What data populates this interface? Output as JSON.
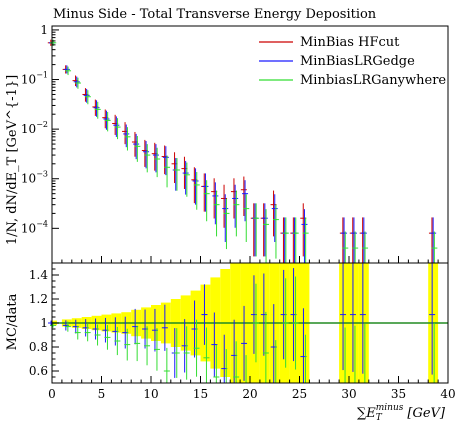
{
  "chart_data": {
    "type": "scatter",
    "title": "Minus Side - Total Transverse Energy Deposition",
    "xlim": [
      0,
      40
    ],
    "x_ticks": [
      "0",
      "5",
      "10",
      "15",
      "20",
      "25",
      "30",
      "35",
      "40"
    ],
    "xlabel_parts": [
      "∑",
      "E",
      "T",
      "minus",
      "[GeV]"
    ],
    "legend_position": "top-right",
    "colors": {
      "hfcut": "#cc0000",
      "lredge": "#1a1aff",
      "lranywhere": "#33dd33",
      "band": "#ffff00",
      "ref_line": "#228b22"
    },
    "top_panel": {
      "yscale": "log",
      "ylim": [
        2e-05,
        1.2
      ],
      "y_ticks": [
        {
          "value": 1,
          "base": "1",
          "exp": ""
        },
        {
          "value": 0.1,
          "base": "10",
          "exp": "−1"
        },
        {
          "value": 0.01,
          "base": "10",
          "exp": "−2"
        },
        {
          "value": 0.001,
          "base": "10",
          "exp": "−3"
        },
        {
          "value": 0.0001,
          "base": "10",
          "exp": "−4"
        }
      ],
      "ylabel": "1/N, dN/dE_T [GeV^{-1}]"
    },
    "series": [
      {
        "name": "MinBias HFcut",
        "color": "#cc0000",
        "x": [
          0,
          1.5,
          2.5,
          3.5,
          4.5,
          5.5,
          6.5,
          7.5,
          8.5,
          9.5,
          10.5,
          11.5,
          12.5,
          13.5,
          14.5,
          15.5,
          16.5,
          17.5,
          18.5,
          19.5,
          20.5,
          21.5,
          22.5,
          23.5,
          24.5,
          25.5,
          29.5,
          30.5,
          31.5,
          38.5
        ],
        "y": [
          0.55,
          0.16,
          0.095,
          0.05,
          0.028,
          0.017,
          0.013,
          0.009,
          0.0055,
          0.0037,
          0.0032,
          0.0028,
          0.002,
          0.0016,
          0.00095,
          0.0007,
          0.00055,
          0.0004,
          0.00055,
          0.0006,
          0.00016,
          0.00016,
          0.0003,
          8e-05,
          8e-05,
          0.00016,
          8e-05,
          8e-05,
          8e-05,
          8e-05
        ]
      },
      {
        "name": "MinBiasLRGedge",
        "color": "#1a1aff",
        "x": [
          0,
          1.5,
          2.5,
          3.5,
          4.5,
          5.5,
          6.5,
          7.5,
          8.5,
          9.5,
          10.5,
          11.5,
          12.5,
          13.5,
          14.5,
          15.5,
          16.5,
          17.5,
          18.5,
          19.5,
          20.5,
          21.5,
          22.5,
          23.5,
          24.5,
          25.5,
          29.5,
          30.5,
          31.5,
          38.5
        ],
        "y": [
          0.55,
          0.16,
          0.09,
          0.048,
          0.027,
          0.016,
          0.012,
          0.008,
          0.005,
          0.0035,
          0.003,
          0.0027,
          0.0015,
          0.0013,
          0.0009,
          0.0007,
          0.00045,
          0.00025,
          0.0004,
          0.0005,
          0.00016,
          0.00016,
          0.00025,
          8e-05,
          8e-05,
          0.00012,
          8e-05,
          8e-05,
          8e-05,
          8e-05
        ]
      },
      {
        "name": "MinbiasLRGanywhere",
        "color": "#33dd33",
        "x": [
          0,
          1.5,
          2.5,
          3.5,
          4.5,
          5.5,
          6.5,
          7.5,
          8.5,
          9.5,
          10.5,
          11.5,
          12.5,
          13.5,
          14.5,
          15.5,
          16.5,
          17.5,
          18.5,
          19.5,
          20.5,
          21.5,
          22.5,
          23.5,
          24.5,
          25.5,
          29.5,
          30.5,
          31.5,
          38.5
        ],
        "y": [
          0.55,
          0.15,
          0.085,
          0.045,
          0.025,
          0.015,
          0.011,
          0.007,
          0.0045,
          0.003,
          0.0025,
          0.0017,
          0.0015,
          0.0012,
          0.00075,
          0.0005,
          0.0003,
          0.0002,
          0.0003,
          0.00025,
          0.00016,
          0.00012,
          0.00015,
          8e-05,
          8e-05,
          8e-05,
          4e-05,
          4e-05,
          4e-05,
          4e-05
        ]
      }
    ],
    "ratio_panel": {
      "ylabel": "MC/data",
      "ylim": [
        0.5,
        1.5
      ],
      "y_ticks": [
        "0.6",
        "0.8",
        "1",
        "1.2",
        "1.4"
      ],
      "reference": 1,
      "band": {
        "x": [
          0,
          1.5,
          2.5,
          3.5,
          4.5,
          5.5,
          6.5,
          7.5,
          8.5,
          9.5,
          10.5,
          11.5,
          12.5,
          13.5,
          14.5,
          15.5,
          16.5,
          17.5,
          18.5,
          19.5,
          20.5,
          21.5,
          22.5,
          23.5,
          24.5,
          25.5,
          29.5,
          30.5,
          31.5,
          38.5
        ],
        "lo": [
          0.98,
          0.97,
          0.96,
          0.95,
          0.94,
          0.93,
          0.92,
          0.91,
          0.89,
          0.87,
          0.85,
          0.83,
          0.8,
          0.77,
          0.73,
          0.68,
          0.62,
          0.55,
          0.5,
          0.5,
          0.5,
          0.5,
          0.5,
          0.5,
          0.5,
          0.5,
          0.5,
          0.5,
          0.5,
          0.5
        ],
        "hi": [
          1.02,
          1.03,
          1.04,
          1.05,
          1.06,
          1.07,
          1.08,
          1.09,
          1.11,
          1.13,
          1.15,
          1.17,
          1.2,
          1.23,
          1.27,
          1.32,
          1.38,
          1.45,
          1.5,
          1.5,
          1.5,
          1.5,
          1.5,
          1.5,
          1.5,
          1.5,
          1.5,
          1.5,
          1.5,
          1.5
        ]
      },
      "series": [
        {
          "color": "#1a1aff",
          "x": [
            0,
            1.5,
            2.5,
            3.5,
            4.5,
            5.5,
            6.5,
            7.5,
            8.5,
            9.5,
            10.5,
            11.5,
            12.5,
            13.5,
            14.5,
            15.5,
            16.5,
            17.5,
            18.5,
            19.5,
            20.5,
            21.5,
            22.5,
            23.5,
            24.5,
            25.5,
            29.5,
            30.5,
            31.5,
            38.5
          ],
          "y": [
            1.0,
            0.98,
            0.97,
            0.96,
            0.95,
            0.94,
            0.93,
            0.92,
            0.97,
            0.95,
            0.94,
            0.96,
            0.75,
            0.81,
            0.95,
            1.07,
            0.82,
            0.62,
            0.73,
            0.83,
            1.07,
            1.07,
            0.8,
            1.07,
            1.07,
            0.72,
            1.07,
            1.07,
            1.07,
            1.07
          ]
        },
        {
          "color": "#33dd33",
          "x": [
            0,
            1.5,
            2.5,
            3.5,
            4.5,
            5.5,
            6.5,
            7.5,
            8.5,
            9.5,
            10.5,
            11.5,
            12.5,
            13.5,
            14.5,
            15.5,
            16.5,
            17.5,
            18.5,
            19.5,
            20.5,
            21.5,
            22.5,
            23.5,
            24.5,
            25.5,
            29.5,
            30.5,
            31.5,
            38.5
          ],
          "y": [
            0.98,
            0.97,
            0.92,
            0.92,
            0.9,
            0.88,
            0.85,
            0.82,
            0.83,
            0.81,
            0.78,
            0.6,
            0.75,
            0.75,
            0.79,
            0.71,
            0.55,
            0.5,
            0.55,
            0.42,
            1.0,
            0.75,
            0.5,
            1.0,
            1.0,
            0.5,
            0.5,
            0.5,
            0.5,
            0.5
          ]
        }
      ]
    }
  }
}
